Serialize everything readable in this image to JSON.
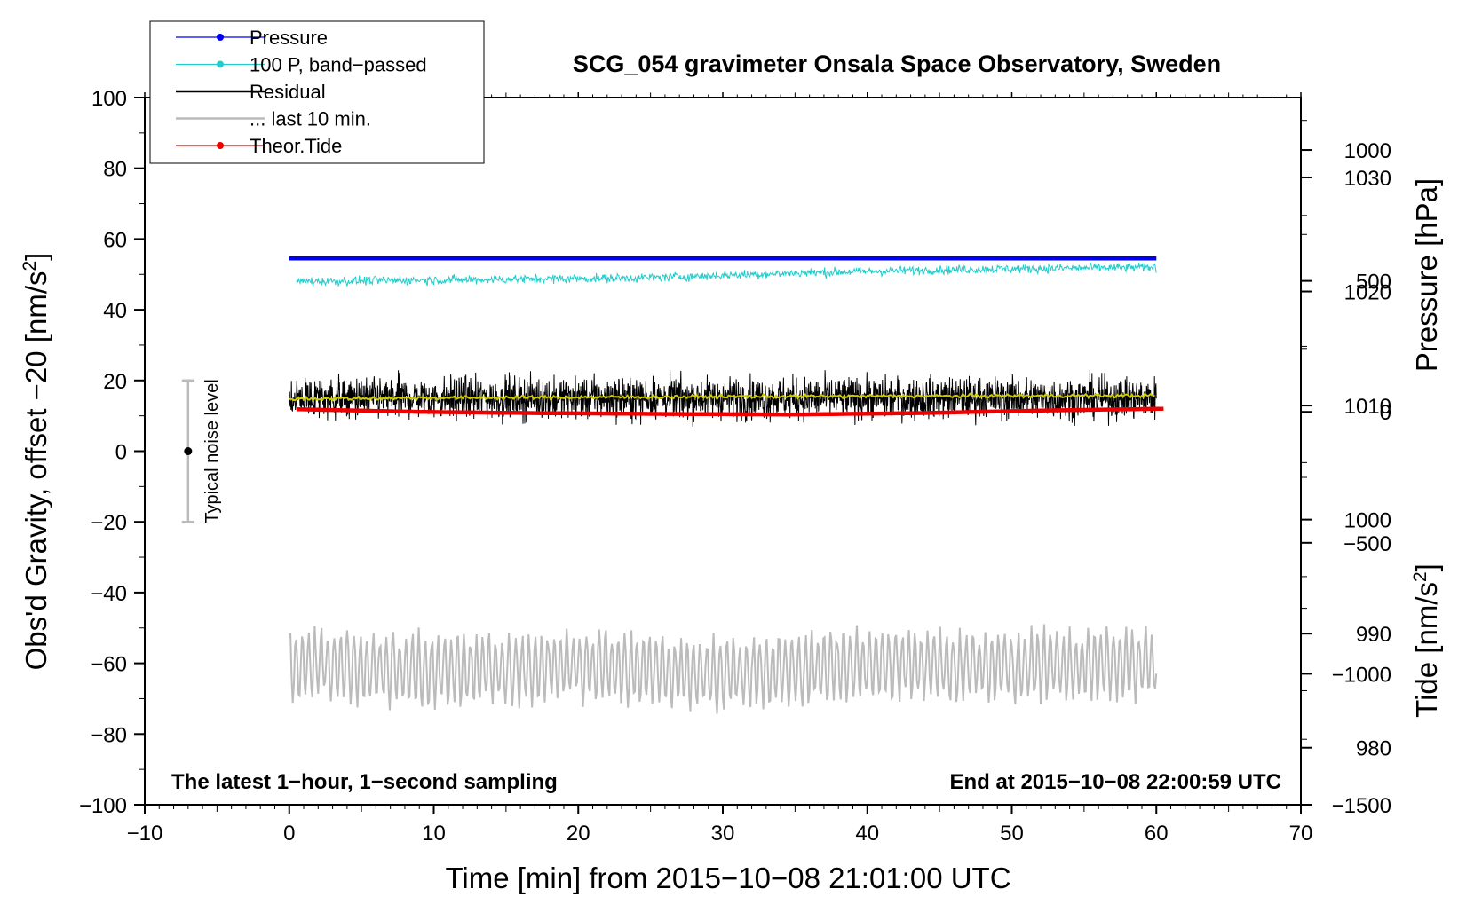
{
  "chart_data": {
    "type": "line",
    "title": "SCG_054 gravimeter Onsala Space Observatory, Sweden",
    "xlabel": "Time [min] from 2015−10−08 21:01:00 UTC",
    "ylabel_left_main": "Obs'd Gravity, offset −20 [nm/s",
    "ylabel_left_sup": "2",
    "ylabel_left_close": "]",
    "ylabel_right_top": "Pressure [hPa]",
    "ylabel_right_bottom_main": "Tide [nm/s",
    "ylabel_right_bottom_sup": "2",
    "ylabel_right_bottom_close": "]",
    "xlim": [
      -10,
      70
    ],
    "ylim_left": [
      -100,
      100
    ],
    "ylim_pressure": [
      975,
      1037
    ],
    "ylim_tide": [
      -1500,
      1200
    ],
    "x_ticks": [
      {
        "value": -10,
        "label": "−10"
      },
      {
        "value": 0,
        "label": "0"
      },
      {
        "value": 10,
        "label": "10"
      },
      {
        "value": 20,
        "label": "20"
      },
      {
        "value": 30,
        "label": "30"
      },
      {
        "value": 40,
        "label": "40"
      },
      {
        "value": 50,
        "label": "50"
      },
      {
        "value": 60,
        "label": "60"
      },
      {
        "value": 70,
        "label": "70"
      }
    ],
    "y_left_ticks": [
      {
        "value": 100,
        "label": "100"
      },
      {
        "value": 80,
        "label": "80"
      },
      {
        "value": 60,
        "label": "60"
      },
      {
        "value": 40,
        "label": "40"
      },
      {
        "value": 20,
        "label": "20"
      },
      {
        "value": 0,
        "label": "0"
      },
      {
        "value": -20,
        "label": "−20"
      },
      {
        "value": -40,
        "label": "−40"
      },
      {
        "value": -60,
        "label": "−60"
      },
      {
        "value": -80,
        "label": "−80"
      },
      {
        "value": -100,
        "label": "−100"
      }
    ],
    "y_pressure_ticks": [
      {
        "value": 1030,
        "label": "1030"
      },
      {
        "value": 1020,
        "label": "1020"
      },
      {
        "value": 1010,
        "label": "1010"
      },
      {
        "value": 1000,
        "label": "1000"
      },
      {
        "value": 990,
        "label": "990"
      },
      {
        "value": 980,
        "label": "980"
      }
    ],
    "y_tide_ticks": [
      {
        "value": 1000,
        "label": "1000"
      },
      {
        "value": 500,
        "label": "500"
      },
      {
        "value": 0,
        "label": "0"
      },
      {
        "value": -500,
        "label": "−500"
      },
      {
        "value": -1000,
        "label": "−1000"
      },
      {
        "value": -1500,
        "label": "−1500"
      }
    ],
    "legend": [
      {
        "name": "Pressure",
        "color": "#0000ee",
        "marker": true
      },
      {
        "name": "100 P, band−passed",
        "color": "#22cccc",
        "marker": true
      },
      {
        "name": "Residual",
        "color": "#000000",
        "marker": false
      },
      {
        "name": "... last 10 min.",
        "color": "#bbbbbb",
        "marker": false
      },
      {
        "name": "Theor.Tide",
        "color": "#ee0000",
        "marker": true
      }
    ],
    "series": [
      {
        "name": "Pressure",
        "axis": "pressure",
        "color": "#0000ee",
        "x_start": 0,
        "x_end": 60,
        "values": [
          1022.9,
          1022.9,
          1022.9,
          1022.9
        ]
      },
      {
        "name": "100 P, band−passed",
        "axis": "left",
        "color": "#22cccc",
        "x_start": 0.5,
        "x_end": 60,
        "values": [
          48,
          48.5,
          49,
          50.5,
          51.5,
          52
        ]
      },
      {
        "name": "Residual",
        "axis": "left",
        "color": "#000000",
        "x_start": 0,
        "x_end": 60,
        "values": [
          15,
          15,
          15,
          15,
          15,
          15,
          15
        ]
      },
      {
        "name": "Residual running mean",
        "axis": "left",
        "color": "#cccc00",
        "x_start": 0,
        "x_end": 60,
        "values": [
          14.8,
          15.1,
          15.3,
          15.5,
          15.6,
          15.7
        ]
      },
      {
        "name": "... last 10 min.",
        "axis": "left",
        "color": "#bbbbbb",
        "x_start": 0,
        "x_end": 60,
        "values": [
          -60,
          -62,
          -61,
          -63,
          -60,
          -61,
          -60
        ]
      },
      {
        "name": "Theor.Tide",
        "axis": "tide",
        "color": "#ee0000",
        "x_start": 0.5,
        "x_end": 60.5,
        "values": [
          10,
          0,
          -5,
          -8,
          -10,
          -5,
          5,
          12
        ]
      }
    ],
    "noise_bar": {
      "x": -7,
      "center": 0,
      "low": -20,
      "high": 20,
      "label": "Typical noise level"
    },
    "annotation_left": "The latest 1−hour, 1−second sampling",
    "annotation_right": "End at 2015−10−08 22:00:59 UTC"
  }
}
